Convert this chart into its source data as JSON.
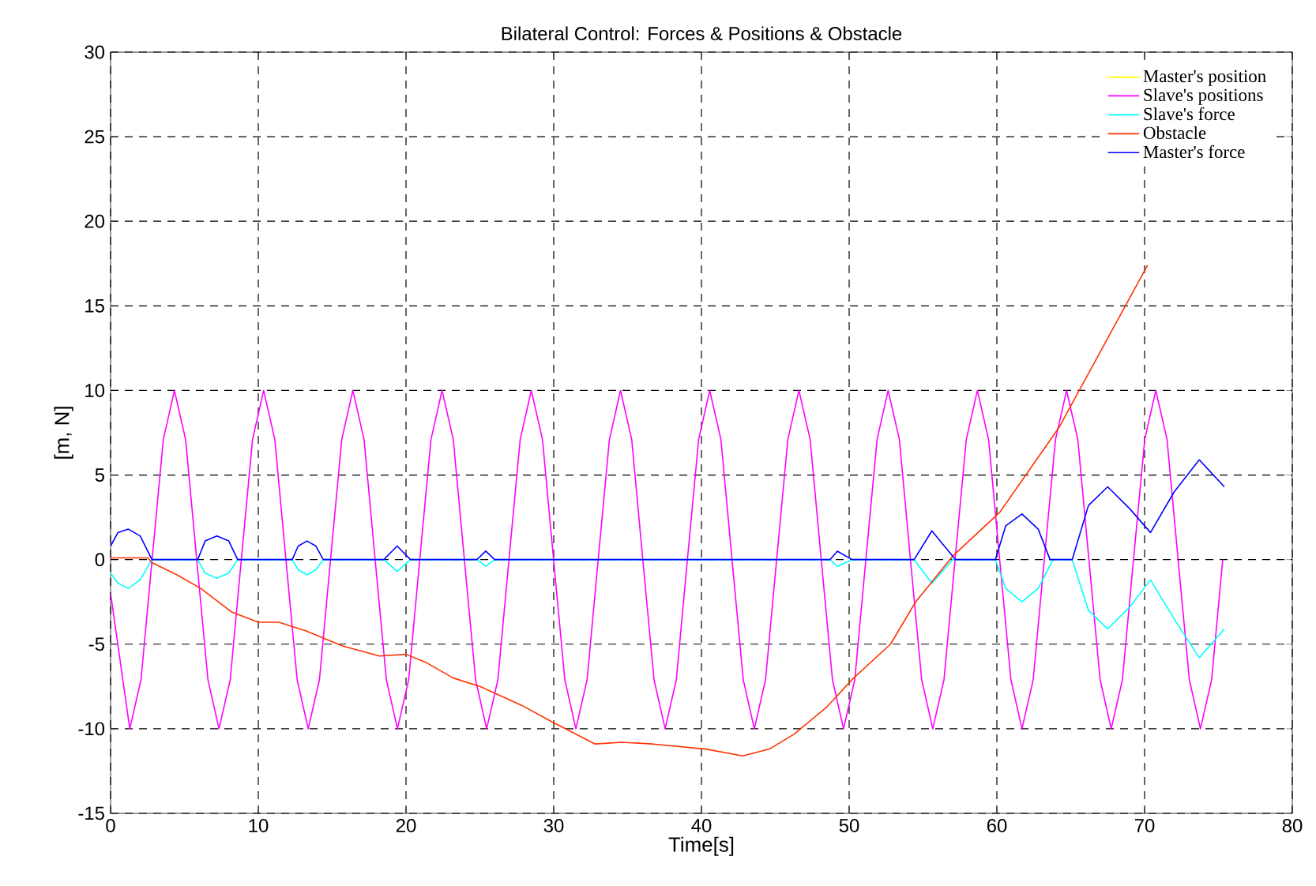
{
  "chart_data": {
    "type": "line",
    "title": "Bilateral Control: Forces & Positions & Obstacle",
    "xlabel": "Time[s]",
    "ylabel": "[m, N]",
    "xlim": [
      0,
      80
    ],
    "ylim": [
      -15,
      30
    ],
    "xticks": [
      0,
      10,
      20,
      30,
      40,
      50,
      60,
      70,
      80
    ],
    "yticks": [
      -15,
      -10,
      -5,
      0,
      5,
      10,
      15,
      20,
      25,
      30
    ],
    "grid": true,
    "legend": "top right",
    "series": [
      {
        "name": "Master's position",
        "color": "#ffff00"
      },
      {
        "name": "Slave's positions",
        "color": "#ff00ff",
        "x": [
          0,
          1.3,
          2.06,
          2.81,
          3.57,
          4.32,
          5.08,
          5.83,
          6.59,
          7.34,
          8.1,
          8.85,
          9.61,
          10.36,
          11.12,
          11.87,
          12.63,
          13.38,
          14.14,
          14.89,
          15.65,
          16.4,
          17.16,
          17.91,
          18.67,
          19.42,
          20.18,
          20.93,
          21.69,
          22.44,
          23.2,
          23.95,
          24.71,
          25.46,
          26.22,
          26.97,
          27.73,
          28.48,
          29.24,
          29.99,
          30.75,
          31.5,
          32.26,
          33.01,
          33.77,
          34.52,
          35.28,
          36.03,
          36.79,
          37.54,
          38.3,
          39.05,
          39.81,
          40.56,
          41.32,
          42.07,
          42.83,
          43.58,
          44.34,
          45.09,
          45.85,
          46.6,
          47.36,
          48.11,
          48.87,
          49.62,
          50.38,
          51.13,
          51.89,
          52.64,
          53.4,
          54.15,
          54.91,
          55.66,
          56.42,
          57.17,
          57.93,
          58.68,
          59.44,
          60.19,
          60.95,
          61.7,
          62.46,
          63.21,
          63.97,
          64.72,
          65.48,
          66.23,
          66.99,
          67.74,
          68.5,
          69.25,
          70.01,
          70.76,
          71.52,
          72.27,
          73.03,
          73.78,
          74.54,
          75.29
        ],
        "values": [
          -2,
          -10,
          -7.1,
          0,
          7.1,
          10,
          7.1,
          0,
          -7.1,
          -10,
          -7.1,
          0,
          7.1,
          10,
          7.1,
          0,
          -7.1,
          -10,
          -7.1,
          0,
          7.1,
          10,
          7.1,
          0,
          -7.1,
          -10,
          -7.1,
          0,
          7.1,
          10,
          7.1,
          0,
          -7.1,
          -10,
          -7.1,
          0,
          7.1,
          10,
          7.1,
          0,
          -7.1,
          -10,
          -7.1,
          0,
          7.1,
          10,
          7.1,
          0,
          -7.1,
          -10,
          -7.1,
          0,
          7.1,
          10,
          7.1,
          0,
          -7.1,
          -10,
          -7.1,
          0,
          7.1,
          10,
          7.1,
          0,
          -7.1,
          -10,
          -7.1,
          0,
          7.1,
          10,
          7.1,
          0,
          -7.1,
          -10,
          -7.1,
          0,
          7.1,
          10,
          7.1,
          0,
          -7.1,
          -10,
          -7.1,
          0,
          7.1,
          10,
          7.1,
          0,
          -7.1,
          -10,
          -7.1,
          0,
          7.1,
          10,
          7.1,
          0,
          -7.1,
          -10,
          -7.1,
          0
        ]
      },
      {
        "name": "Slave's force",
        "color": "#00ffff",
        "x": [
          0,
          0.5,
          1.2,
          2.0,
          2.8,
          5.9,
          6.4,
          7.2,
          8.0,
          8.6,
          12.3,
          12.7,
          13.3,
          13.9,
          14.4,
          18.5,
          19.4,
          20.3,
          24.8,
          25.4,
          26.0,
          48.7,
          49.2,
          50.2,
          54.4,
          55.6,
          57.0,
          59.9,
          60.6,
          61.7,
          62.8,
          63.8,
          65.1,
          66.2,
          67.5,
          69.0,
          70.4,
          72.0,
          73.7,
          75.4
        ],
        "values": [
          -0.8,
          -1.4,
          -1.7,
          -1.2,
          0,
          0,
          -0.8,
          -1.1,
          -0.8,
          0,
          0,
          -0.6,
          -0.9,
          -0.6,
          0,
          0,
          -0.7,
          0,
          0,
          -0.4,
          0,
          0,
          -0.4,
          0,
          0,
          -1.4,
          0,
          0,
          -1.7,
          -2.5,
          -1.7,
          0,
          0,
          -3.0,
          -4.1,
          -2.8,
          -1.2,
          -3.5,
          -5.8,
          -4.1
        ]
      },
      {
        "name": "Obstacle",
        "color": "#ff3300",
        "x": [
          0,
          2.5,
          2.85,
          4.5,
          6.1,
          8.2,
          10,
          11.4,
          13.2,
          15.7,
          18.2,
          20,
          21.4,
          23.2,
          25,
          27.8,
          29.9,
          32.8,
          34.6,
          36.7,
          40.3,
          42.8,
          44.6,
          46.3,
          48.5,
          50.3,
          52.8,
          54.5,
          57,
          60.2,
          64.2,
          66.7,
          70.2
        ],
        "values": [
          0.1,
          0.1,
          -0.2,
          -0.9,
          -1.7,
          -3.1,
          -3.7,
          -3.7,
          -4.2,
          -5.1,
          -5.7,
          -5.6,
          -6.1,
          -7.0,
          -7.5,
          -8.6,
          -9.6,
          -10.9,
          -10.8,
          -10.9,
          -11.2,
          -11.6,
          -11.2,
          -10.3,
          -8.7,
          -7.0,
          -5.0,
          -2.5,
          0.2,
          2.8,
          7.8,
          11.8,
          17.4
        ]
      },
      {
        "name": "Master's force",
        "color": "#0000ff",
        "x": [
          0,
          0.5,
          1.2,
          2.0,
          2.8,
          5.9,
          6.4,
          7.2,
          8.0,
          8.6,
          12.3,
          12.7,
          13.3,
          13.9,
          14.4,
          18.5,
          19.4,
          20.3,
          24.8,
          25.4,
          26.0,
          48.7,
          49.2,
          50.2,
          54.4,
          55.6,
          57.2,
          59.9,
          60.6,
          61.7,
          62.8,
          63.6,
          65.1,
          66.2,
          67.5,
          69.0,
          70.4,
          72.0,
          73.7,
          75.4
        ],
        "values": [
          0.8,
          1.6,
          1.8,
          1.4,
          0,
          0,
          1.1,
          1.4,
          1.1,
          0,
          0,
          0.8,
          1.1,
          0.8,
          0,
          0,
          0.8,
          0,
          0,
          0.5,
          0,
          0,
          0.5,
          0,
          0,
          1.7,
          0,
          0,
          2.0,
          2.7,
          1.8,
          0,
          0,
          3.2,
          4.3,
          3.0,
          1.6,
          4.0,
          5.9,
          4.3
        ]
      }
    ]
  }
}
